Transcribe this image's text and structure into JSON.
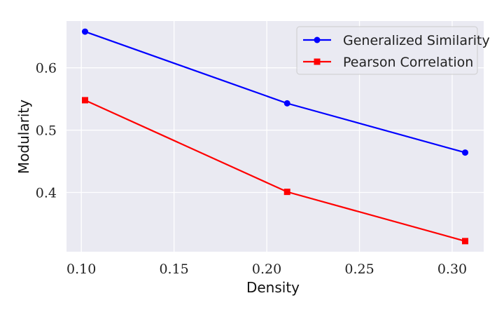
{
  "chart_data": {
    "type": "line",
    "title": "",
    "xlabel": "Density",
    "ylabel": "Modularity",
    "x": [
      0.102,
      0.211,
      0.307
    ],
    "series": [
      {
        "name": "Generalized Similarity",
        "values": [
          0.658,
          0.543,
          0.464
        ],
        "color": "#0000ff",
        "marker": "circle"
      },
      {
        "name": "Pearson Correlation",
        "values": [
          0.548,
          0.401,
          0.322
        ],
        "color": "#ff0000",
        "marker": "square"
      }
    ],
    "xlim": [
      0.092,
      0.317
    ],
    "ylim": [
      0.305,
      0.675
    ],
    "xticks": [
      0.1,
      0.15,
      0.2,
      0.25,
      0.3
    ],
    "xtick_labels": [
      "0.10",
      "0.15",
      "0.20",
      "0.25",
      "0.30"
    ],
    "yticks": [
      0.4,
      0.5,
      0.6
    ],
    "ytick_labels": [
      "0.4",
      "0.5",
      "0.6"
    ],
    "grid": true,
    "legend_position": "top-right",
    "colors": {
      "plot_background": "#eaeaf2",
      "grid": "#ffffff"
    }
  }
}
